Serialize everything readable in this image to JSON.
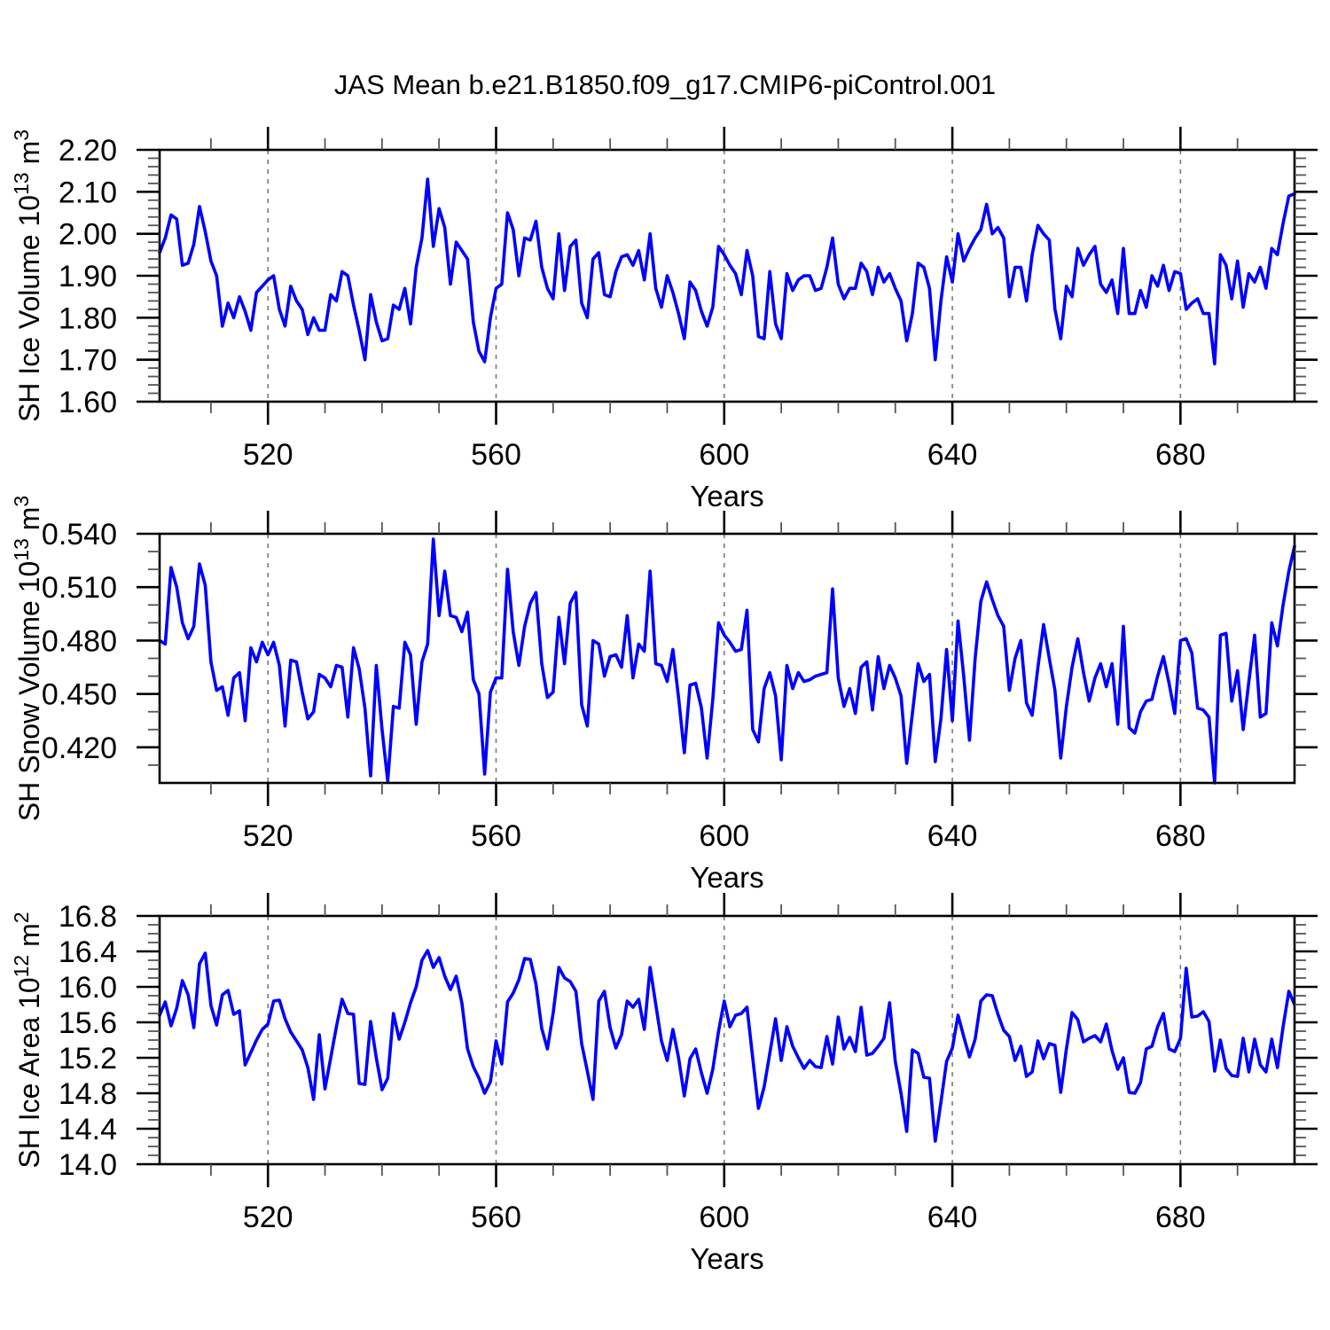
{
  "title": "JAS Mean b.e21.B1850.f09_g17.CMIP6-piControl.001",
  "colors": {
    "line": "#0000ff",
    "axis": "#000000",
    "grid": "#7a7a7a",
    "minor_tick": "#555555"
  },
  "x_axis": {
    "label": "Years",
    "domain": [
      501,
      700
    ],
    "major_ticks": [
      520,
      560,
      600,
      640,
      680
    ],
    "major_tick_labels": [
      "520",
      "560",
      "600",
      "640",
      "680"
    ],
    "minor_step": 10
  },
  "chart_data": [
    {
      "type": "line",
      "name": "sh-ice-volume",
      "ylabel": "SH Ice Volume 10^13 m^3",
      "ylabel_parts": [
        {
          "t": "SH Ice Volume 10"
        },
        {
          "t": "13",
          "sup": true
        },
        {
          "t": " m"
        },
        {
          "t": "3",
          "sup": true
        }
      ],
      "xlabel": "Years",
      "x_tick_labels": [
        "520",
        "560",
        "600",
        "640",
        "680"
      ],
      "ylim": [
        1.6,
        2.2
      ],
      "y_major": [
        {
          "v": 1.6,
          "l": "1.60"
        },
        {
          "v": 1.7,
          "l": "1.70"
        },
        {
          "v": 1.8,
          "l": "1.80"
        },
        {
          "v": 1.9,
          "l": "1.90"
        },
        {
          "v": 2.0,
          "l": "2.00"
        },
        {
          "v": 2.1,
          "l": "2.10"
        },
        {
          "v": 2.2,
          "l": "2.20"
        }
      ],
      "y_minor_step": 0.02,
      "grid": "vertical-dashed",
      "x_start": 501,
      "x_step": 1,
      "values": [
        1.955,
        1.99,
        2.045,
        2.035,
        1.925,
        1.93,
        1.975,
        2.065,
        2.005,
        1.935,
        1.9,
        1.78,
        1.835,
        1.8,
        1.85,
        1.815,
        1.77,
        1.86,
        1.875,
        1.89,
        1.9,
        1.82,
        1.78,
        1.875,
        1.84,
        1.82,
        1.76,
        1.8,
        1.77,
        1.77,
        1.855,
        1.84,
        1.91,
        1.9,
        1.83,
        1.77,
        1.7,
        1.855,
        1.79,
        1.745,
        1.75,
        1.83,
        1.82,
        1.87,
        1.785,
        1.92,
        1.99,
        2.13,
        1.97,
        2.06,
        2.015,
        1.88,
        1.98,
        1.96,
        1.94,
        1.79,
        1.72,
        1.695,
        1.8,
        1.87,
        1.88,
        2.05,
        2.01,
        1.9,
        1.99,
        1.985,
        2.03,
        1.92,
        1.87,
        1.845,
        2.0,
        1.865,
        1.97,
        1.985,
        1.835,
        1.8,
        1.94,
        1.955,
        1.855,
        1.85,
        1.91,
        1.945,
        1.95,
        1.925,
        1.96,
        1.89,
        2.0,
        1.87,
        1.825,
        1.9,
        1.86,
        1.81,
        1.75,
        1.885,
        1.865,
        1.815,
        1.78,
        1.825,
        1.97,
        1.95,
        1.925,
        1.905,
        1.855,
        1.96,
        1.9,
        1.755,
        1.75,
        1.91,
        1.785,
        1.75,
        1.905,
        1.865,
        1.89,
        1.9,
        1.9,
        1.865,
        1.87,
        1.92,
        1.99,
        1.88,
        1.845,
        1.87,
        1.87,
        1.93,
        1.91,
        1.855,
        1.92,
        1.885,
        1.905,
        1.87,
        1.84,
        1.745,
        1.81,
        1.93,
        1.92,
        1.87,
        1.7,
        1.84,
        1.945,
        1.885,
        2.0,
        1.935,
        1.965,
        1.99,
        2.01,
        2.07,
        2.0,
        2.015,
        1.99,
        1.85,
        1.92,
        1.92,
        1.84,
        1.95,
        2.02,
        2.0,
        1.985,
        1.82,
        1.75,
        1.875,
        1.85,
        1.965,
        1.925,
        1.95,
        1.97,
        1.88,
        1.86,
        1.89,
        1.81,
        1.965,
        1.81,
        1.81,
        1.865,
        1.825,
        1.9,
        1.875,
        1.925,
        1.865,
        1.91,
        1.905,
        1.82,
        1.835,
        1.845,
        1.81,
        1.81,
        1.69,
        1.95,
        1.925,
        1.845,
        1.935,
        1.825,
        1.905,
        1.885,
        1.92,
        1.87,
        1.965,
        1.95,
        2.025,
        2.09,
        2.095
      ]
    },
    {
      "type": "line",
      "name": "sh-snow-volume",
      "ylabel": "SH Snow Volume 10^13 m^3",
      "ylabel_parts": [
        {
          "t": "SH Snow Volume 10"
        },
        {
          "t": "13",
          "sup": true
        },
        {
          "t": " m"
        },
        {
          "t": "3",
          "sup": true
        }
      ],
      "xlabel": "Years",
      "x_tick_labels": [
        "520",
        "560",
        "600",
        "640",
        "680"
      ],
      "ylim": [
        0.4,
        0.54
      ],
      "y_major": [
        {
          "v": 0.42,
          "l": "0.420"
        },
        {
          "v": 0.45,
          "l": "0.450"
        },
        {
          "v": 0.48,
          "l": "0.480"
        },
        {
          "v": 0.51,
          "l": "0.510"
        },
        {
          "v": 0.54,
          "l": "0.540"
        }
      ],
      "y_minor_step": 0.01,
      "grid": "vertical-dashed",
      "x_start": 501,
      "x_step": 1,
      "values": [
        0.48,
        0.478,
        0.521,
        0.51,
        0.49,
        0.481,
        0.488,
        0.523,
        0.511,
        0.468,
        0.452,
        0.454,
        0.438,
        0.459,
        0.462,
        0.435,
        0.476,
        0.468,
        0.479,
        0.472,
        0.479,
        0.466,
        0.432,
        0.469,
        0.468,
        0.451,
        0.436,
        0.44,
        0.461,
        0.459,
        0.454,
        0.466,
        0.465,
        0.437,
        0.476,
        0.464,
        0.442,
        0.404,
        0.466,
        0.43,
        0.401,
        0.443,
        0.442,
        0.479,
        0.472,
        0.433,
        0.468,
        0.478,
        0.537,
        0.494,
        0.519,
        0.494,
        0.493,
        0.485,
        0.496,
        0.458,
        0.45,
        0.405,
        0.451,
        0.459,
        0.459,
        0.52,
        0.485,
        0.466,
        0.488,
        0.501,
        0.507,
        0.467,
        0.448,
        0.451,
        0.493,
        0.467,
        0.501,
        0.507,
        0.444,
        0.432,
        0.48,
        0.478,
        0.46,
        0.471,
        0.472,
        0.465,
        0.494,
        0.459,
        0.478,
        0.474,
        0.519,
        0.467,
        0.466,
        0.457,
        0.475,
        0.448,
        0.417,
        0.455,
        0.456,
        0.442,
        0.414,
        0.447,
        0.49,
        0.483,
        0.479,
        0.474,
        0.475,
        0.497,
        0.43,
        0.423,
        0.453,
        0.462,
        0.449,
        0.413,
        0.466,
        0.453,
        0.462,
        0.457,
        0.458,
        0.46,
        0.461,
        0.462,
        0.509,
        0.459,
        0.443,
        0.453,
        0.439,
        0.465,
        0.468,
        0.441,
        0.471,
        0.453,
        0.466,
        0.459,
        0.449,
        0.411,
        0.439,
        0.467,
        0.457,
        0.461,
        0.412,
        0.436,
        0.475,
        0.435,
        0.491,
        0.46,
        0.424,
        0.47,
        0.502,
        0.513,
        0.503,
        0.494,
        0.488,
        0.452,
        0.47,
        0.48,
        0.445,
        0.438,
        0.465,
        0.489,
        0.47,
        0.452,
        0.414,
        0.443,
        0.465,
        0.481,
        0.462,
        0.446,
        0.459,
        0.467,
        0.454,
        0.467,
        0.433,
        0.488,
        0.431,
        0.428,
        0.44,
        0.446,
        0.447,
        0.46,
        0.471,
        0.456,
        0.439,
        0.48,
        0.481,
        0.473,
        0.442,
        0.441,
        0.437,
        0.4,
        0.483,
        0.484,
        0.446,
        0.463,
        0.43,
        0.457,
        0.483,
        0.437,
        0.439,
        0.49,
        0.477,
        0.5,
        0.519,
        0.533
      ]
    },
    {
      "type": "line",
      "name": "sh-ice-area",
      "ylabel": "SH Ice Area 10^12 m^2",
      "ylabel_parts": [
        {
          "t": "SH Ice Area 10"
        },
        {
          "t": "12",
          "sup": true
        },
        {
          "t": " m"
        },
        {
          "t": "2",
          "sup": true
        }
      ],
      "xlabel": "Years",
      "x_tick_labels": [
        "520",
        "560",
        "600",
        "640",
        "680"
      ],
      "ylim": [
        14.0,
        16.8
      ],
      "y_major": [
        {
          "v": 14.0,
          "l": "14.0"
        },
        {
          "v": 14.4,
          "l": "14.4"
        },
        {
          "v": 14.8,
          "l": "14.8"
        },
        {
          "v": 15.2,
          "l": "15.2"
        },
        {
          "v": 15.6,
          "l": "15.6"
        },
        {
          "v": 16.0,
          "l": "16.0"
        },
        {
          "v": 16.4,
          "l": "16.4"
        },
        {
          "v": 16.8,
          "l": "16.8"
        }
      ],
      "y_minor_step": 0.1,
      "grid": "vertical-dashed",
      "x_start": 501,
      "x_step": 1,
      "values": [
        15.68,
        15.83,
        15.56,
        15.76,
        16.07,
        15.91,
        15.54,
        16.26,
        16.38,
        15.79,
        15.57,
        15.91,
        15.96,
        15.69,
        15.73,
        15.12,
        15.26,
        15.4,
        15.52,
        15.58,
        15.84,
        15.85,
        15.64,
        15.49,
        15.39,
        15.29,
        15.09,
        14.73,
        15.46,
        14.85,
        15.2,
        15.55,
        15.86,
        15.7,
        15.69,
        14.91,
        14.9,
        15.61,
        15.2,
        14.84,
        14.97,
        15.7,
        15.41,
        15.6,
        15.82,
        16.0,
        16.3,
        16.41,
        16.22,
        16.33,
        16.12,
        15.97,
        16.12,
        15.82,
        15.3,
        15.1,
        14.97,
        14.8,
        14.93,
        15.39,
        15.13,
        15.83,
        15.93,
        16.08,
        16.32,
        16.31,
        16.03,
        15.53,
        15.3,
        15.7,
        16.22,
        16.1,
        16.06,
        15.95,
        15.36,
        15.05,
        14.73,
        15.84,
        15.95,
        15.54,
        15.31,
        15.46,
        15.84,
        15.77,
        15.86,
        15.52,
        16.22,
        15.8,
        15.39,
        15.17,
        15.52,
        15.2,
        14.77,
        15.19,
        15.3,
        15.03,
        14.8,
        15.07,
        15.5,
        15.84,
        15.55,
        15.68,
        15.7,
        15.77,
        15.2,
        14.63,
        14.87,
        15.25,
        15.64,
        15.17,
        15.55,
        15.33,
        15.2,
        15.08,
        15.17,
        15.1,
        15.09,
        15.44,
        15.13,
        15.66,
        15.3,
        15.43,
        15.27,
        15.77,
        15.23,
        15.25,
        15.33,
        15.42,
        15.82,
        15.16,
        14.8,
        14.37,
        15.29,
        15.25,
        14.98,
        14.97,
        14.26,
        14.7,
        15.16,
        15.31,
        15.68,
        15.44,
        15.21,
        15.41,
        15.84,
        15.91,
        15.9,
        15.69,
        15.51,
        15.44,
        15.17,
        15.33,
        14.99,
        15.04,
        15.39,
        15.19,
        15.36,
        15.34,
        14.81,
        15.3,
        15.71,
        15.63,
        15.38,
        15.42,
        15.45,
        15.38,
        15.58,
        15.28,
        15.07,
        15.2,
        14.81,
        14.8,
        14.92,
        15.3,
        15.33,
        15.55,
        15.7,
        15.3,
        15.27,
        15.42,
        16.21,
        15.66,
        15.67,
        15.72,
        15.61,
        15.05,
        15.4,
        15.08,
        15.0,
        14.99,
        15.42,
        15.04,
        15.41,
        15.12,
        15.04,
        15.41,
        15.09,
        15.55,
        15.95,
        15.8
      ]
    }
  ]
}
